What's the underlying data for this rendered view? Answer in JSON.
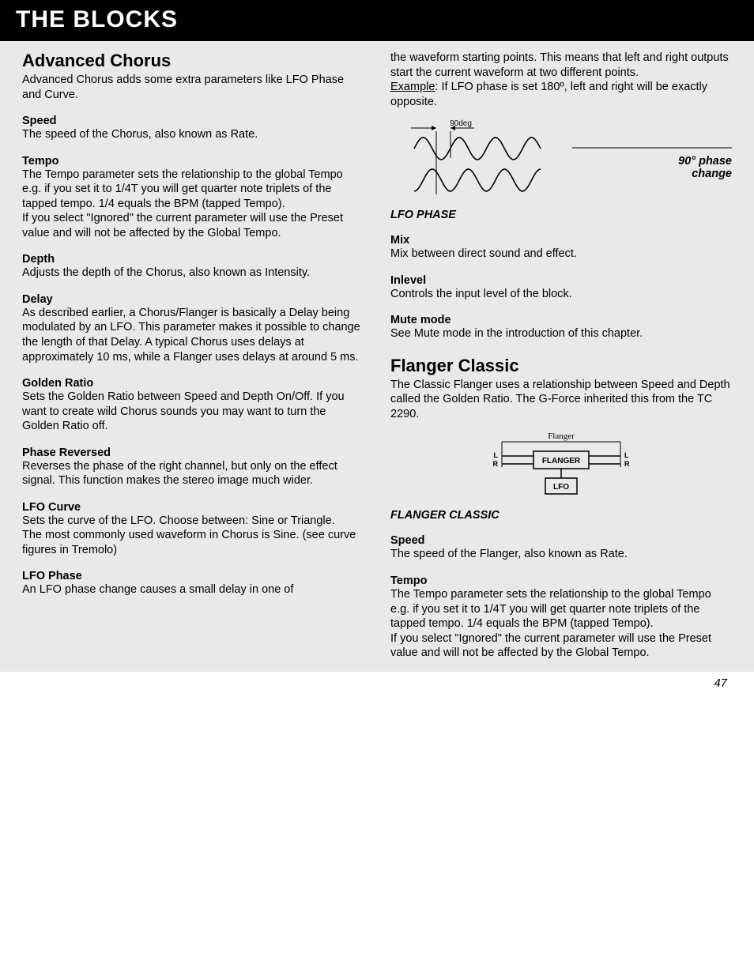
{
  "header": {
    "title": "THE BLOCKS"
  },
  "page_number": "47",
  "colors": {
    "page_bg": "#e9e9e9",
    "header_bg": "#000000",
    "header_text": "#ffffff",
    "text": "#000000"
  },
  "left": {
    "section": {
      "title": "Advanced Chorus",
      "intro": "Advanced Chorus adds some extra parameters like LFO Phase and Curve."
    },
    "params": [
      {
        "title": "Speed",
        "body": "The speed of the Chorus, also known as Rate."
      },
      {
        "title": "Tempo",
        "body": "The Tempo parameter sets the relationship to the global Tempo e.g. if you set it to 1/4T you will get quarter note triplets of the tapped tempo. 1/4 equals the BPM (tapped Tempo).\nIf you select \"Ignored\" the current parameter will use the Preset value and will not be affected by the Global Tempo."
      },
      {
        "title": "Depth",
        "body": "Adjusts the depth of the Chorus, also known as Intensity."
      },
      {
        "title": "Delay",
        "body": "As described earlier, a Chorus/Flanger is basically a Delay being modulated by an LFO. This parameter makes it possible to change the length of that Delay. A typical Chorus uses delays at approximately 10 ms, while a Flanger uses delays at around 5 ms."
      },
      {
        "title": "Golden Ratio",
        "body": "Sets the Golden Ratio between Speed and Depth On/Off. If you want to create wild Chorus sounds you may want to turn the Golden Ratio off."
      },
      {
        "title": "Phase Reversed",
        "body": "Reverses the phase of the right channel, but only on the effect signal. This function makes the stereo image much wider."
      },
      {
        "title": "LFO Curve",
        "body": "Sets the curve of the LFO. Choose between: Sine or Triangle.\nThe most commonly used waveform in Chorus is Sine. (see curve figures in Tremolo)"
      },
      {
        "title": "LFO Phase",
        "body": "An LFO phase change causes a small delay in one of"
      }
    ]
  },
  "right": {
    "continuation": "the waveform starting points. This means that left and right outputs start the current waveform at two different points.",
    "example_label": "Example",
    "example_body": ": If LFO phase is set 180º, left and right will be exactly opposite.",
    "lfo_diagram": {
      "deg_label": "90deg",
      "annotation_line1": "90° phase",
      "annotation_line2": "change",
      "caption": "LFO PHASE",
      "stroke": "#000000",
      "waves": 3.5,
      "phase_shift_deg": 90
    },
    "params_a": [
      {
        "title": "Mix",
        "body": "Mix between direct sound and effect."
      },
      {
        "title": "Inlevel",
        "body": "Controls the input level of the block."
      },
      {
        "title": "Mute mode",
        "body": "See Mute mode in the introduction of this chapter."
      }
    ],
    "section2": {
      "title": "Flanger Classic",
      "intro": "The Classic Flanger uses a relationship between Speed and Depth called the Golden Ratio. The G-Force inherited this from the TC 2290."
    },
    "flanger_diagram": {
      "header": "Flanger",
      "block1": "FLANGER",
      "block2": "LFO",
      "left_top": "L",
      "left_bot": "R",
      "right_top": "L",
      "right_bot": "R",
      "stroke": "#000000",
      "caption": "FLANGER CLASSIC"
    },
    "params_b": [
      {
        "title": "Speed",
        "body": "The speed of the Flanger, also known as Rate."
      },
      {
        "title": "Tempo",
        "body": "The Tempo parameter sets the relationship to the global Tempo e.g. if you set it to 1/4T you will get quarter note triplets of the tapped tempo. 1/4 equals the BPM (tapped Tempo).\nIf you select \"Ignored\" the current parameter will use the Preset value and will not be affected by the Global Tempo."
      }
    ]
  }
}
